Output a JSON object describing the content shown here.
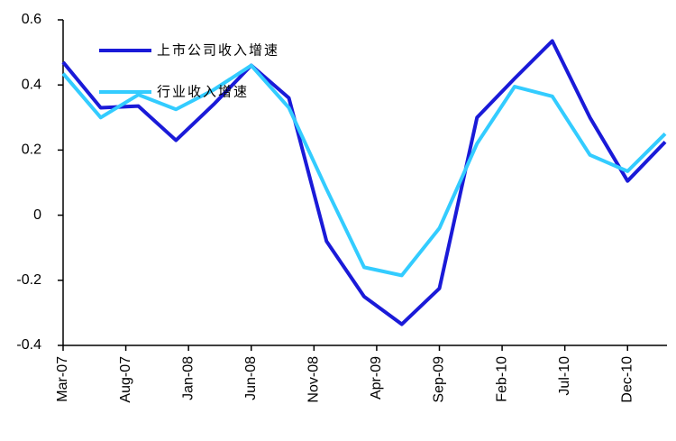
{
  "chart_data": {
    "type": "line",
    "x": [
      0,
      3,
      6,
      9,
      12,
      15,
      18,
      21,
      24,
      27,
      30,
      33,
      36,
      39,
      42,
      45,
      48
    ],
    "series": [
      {
        "name": "上市公司收入增速",
        "color": "#1a1ad8",
        "values": [
          0.47,
          0.33,
          0.335,
          0.23,
          0.34,
          0.46,
          0.36,
          -0.08,
          -0.25,
          -0.335,
          -0.225,
          0.3,
          0.42,
          0.535,
          0.3,
          0.105,
          0.225
        ]
      },
      {
        "name": "行业收入增速",
        "color": "#33ccff",
        "values": [
          0.435,
          0.3,
          0.37,
          0.325,
          0.385,
          0.46,
          0.33,
          0.08,
          -0.16,
          -0.185,
          -0.04,
          0.22,
          0.395,
          0.365,
          0.185,
          0.135,
          0.25
        ]
      }
    ],
    "xlim": [
      0,
      48
    ],
    "xticks": [
      {
        "value": 0,
        "label": "Mar-07"
      },
      {
        "value": 5,
        "label": "Aug-07"
      },
      {
        "value": 10,
        "label": "Jan-08"
      },
      {
        "value": 15,
        "label": "Jun-08"
      },
      {
        "value": 20,
        "label": "Nov-08"
      },
      {
        "value": 25,
        "label": "Apr-09"
      },
      {
        "value": 30,
        "label": "Sep-09"
      },
      {
        "value": 35,
        "label": "Feb-10"
      },
      {
        "value": 40,
        "label": "Jul-10"
      },
      {
        "value": 45,
        "label": "Dec-10"
      }
    ],
    "ylim": [
      -0.4,
      0.6
    ],
    "yticks": [
      -0.4,
      -0.2,
      0,
      0.2,
      0.4,
      0.6
    ],
    "legend": "upper-left"
  }
}
